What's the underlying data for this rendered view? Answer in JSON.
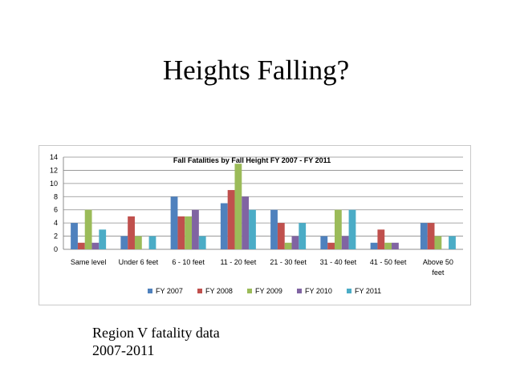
{
  "slide": {
    "title": "Heights Falling?",
    "caption_line1": "Region V fatality data",
    "caption_line2": "2007-2011"
  },
  "chart_data": {
    "type": "bar",
    "title": "Fall Fatalities by Fall Height FY 2007 - FY 2011",
    "xlabel": "",
    "ylabel": "",
    "ylim": [
      0,
      14
    ],
    "yticks": [
      0,
      2,
      4,
      6,
      8,
      10,
      12,
      14
    ],
    "grid": true,
    "legend_position": "bottom",
    "categories": [
      [
        "Same level"
      ],
      [
        "Under 6 feet"
      ],
      [
        "6 - 10 feet"
      ],
      [
        "11 - 20 feet"
      ],
      [
        "21 - 30 feet"
      ],
      [
        "31 - 40 feet"
      ],
      [
        "41 - 50 feet"
      ],
      [
        "Above 50",
        "feet"
      ]
    ],
    "series": [
      {
        "name": "FY 2007",
        "color": "#4f81bd",
        "values": [
          4,
          2,
          8,
          7,
          6,
          2,
          1,
          4
        ]
      },
      {
        "name": "FY 2008",
        "color": "#c0504d",
        "values": [
          1,
          5,
          5,
          9,
          4,
          1,
          3,
          4
        ]
      },
      {
        "name": "FY 2009",
        "color": "#9bbb59",
        "values": [
          6,
          2,
          5,
          13,
          1,
          6,
          1,
          2
        ]
      },
      {
        "name": "FY 2010",
        "color": "#8064a2",
        "values": [
          1,
          0,
          6,
          8,
          2,
          2,
          1,
          0
        ]
      },
      {
        "name": "FY 2011",
        "color": "#4bacc6",
        "values": [
          3,
          2,
          2,
          6,
          4,
          6,
          0,
          2
        ]
      }
    ]
  }
}
